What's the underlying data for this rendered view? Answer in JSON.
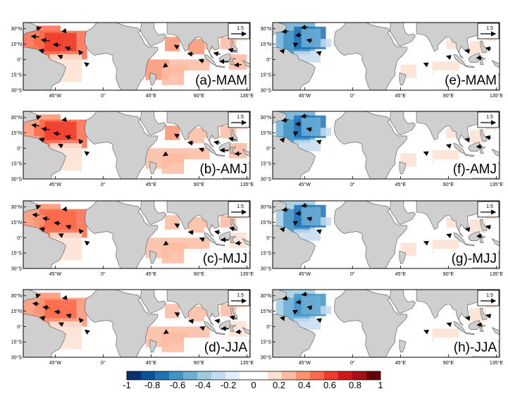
{
  "chart_data": {
    "type": "heatmap",
    "layout": {
      "rows": 4,
      "cols": 2
    },
    "panels": [
      {
        "label": "(a)-MAM",
        "season": "MAM",
        "field": "left",
        "strength": 1.0
      },
      {
        "label": "(e)-MAM",
        "season": "MAM",
        "field": "right",
        "strength": 1.0
      },
      {
        "label": "(b)-AMJ",
        "season": "AMJ",
        "field": "left",
        "strength": 0.95
      },
      {
        "label": "(f)-AMJ",
        "season": "AMJ",
        "field": "right",
        "strength": 1.0
      },
      {
        "label": "(c)-MJJ",
        "season": "MJJ",
        "field": "left",
        "strength": 0.85
      },
      {
        "label": "(g)-MJJ",
        "season": "MJJ",
        "field": "right",
        "strength": 0.95
      },
      {
        "label": "(d)-JJA",
        "season": "JJA",
        "field": "left",
        "strength": 0.8
      },
      {
        "label": "(h)-JJA",
        "season": "JJA",
        "field": "right",
        "strength": 0.9
      }
    ],
    "lon_ticks": [
      "45°W",
      "0°",
      "45°E",
      "90°E",
      "135°E"
    ],
    "lon_tick_values": [
      -45,
      0,
      45,
      90,
      135
    ],
    "lat_ticks": [
      "30°N",
      "15°N",
      "0°",
      "15°S",
      "30°S"
    ],
    "lat_tick_values": [
      30,
      15,
      0,
      -15,
      -30
    ],
    "xlim": [
      -75,
      138
    ],
    "ylim": [
      -30,
      36
    ],
    "reference_vector": "1.5",
    "colorbar": {
      "ticks": [
        "-1",
        "-0.8",
        "-0.6",
        "-0.4",
        "-0.2",
        "0",
        "0.2",
        "0.4",
        "0.6",
        "0.8",
        "1"
      ],
      "range": [
        -1,
        1
      ],
      "colors": [
        "#08306b",
        "#08519c",
        "#2171b5",
        "#4292c6",
        "#6baed6",
        "#9ecae1",
        "#c6dbef",
        "#e3eef8",
        "#ffffff",
        "#ffffff",
        "#fde0d2",
        "#fcbba1",
        "#fc9272",
        "#fb6a4a",
        "#ef3b2c",
        "#cb181d",
        "#a50f15",
        "#67000d"
      ]
    },
    "colors": {
      "land": "#cfcfcf",
      "positive": "#ef5a3f",
      "negative": "#3f8fc8"
    }
  }
}
